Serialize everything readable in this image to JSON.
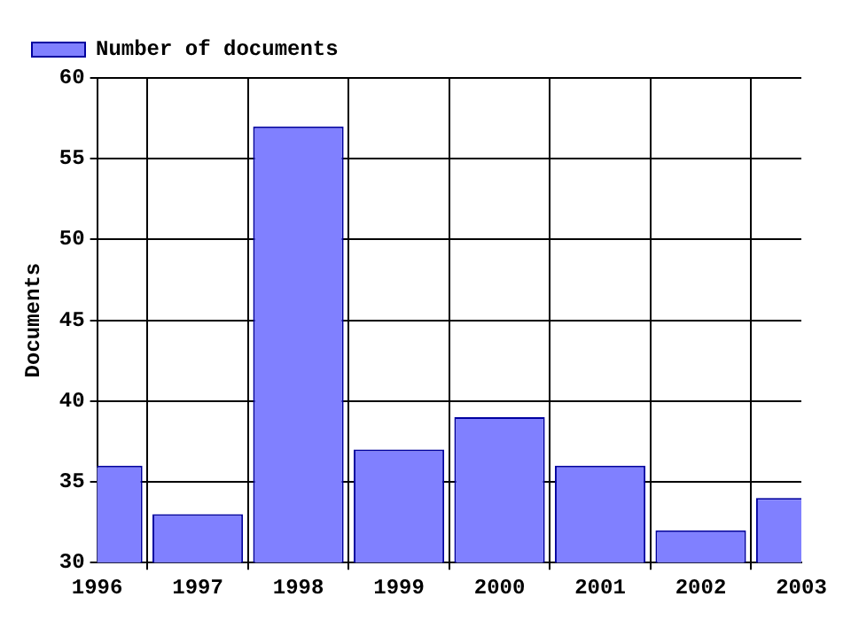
{
  "chart_data": {
    "type": "bar",
    "ylabel": "Documents",
    "x": [
      1996,
      1997,
      1998,
      1999,
      2000,
      2001,
      2002,
      2003
    ],
    "series": [
      {
        "name": "Number of documents",
        "color": "#8080ff",
        "values": [
          36,
          33,
          57,
          37,
          39,
          36,
          32,
          34
        ]
      }
    ],
    "xlim": [
      1996,
      2003
    ],
    "xticks": [
      1996,
      1997,
      1998,
      1999,
      2000,
      2001,
      2002,
      2003
    ],
    "ylim": [
      30,
      60
    ],
    "yticks": [
      30,
      35,
      40,
      45,
      50,
      55,
      60
    ],
    "grid": true,
    "legend": "top left"
  }
}
